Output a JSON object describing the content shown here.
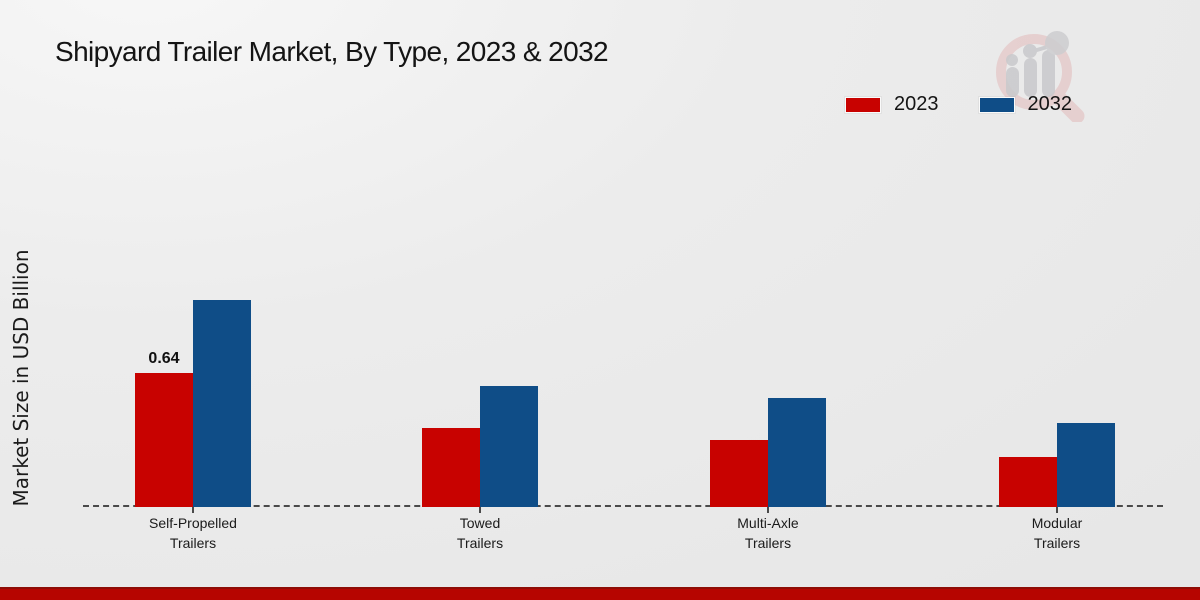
{
  "header": {
    "title": "Shipyard Trailer Market, By Type, 2023 & 2032"
  },
  "axes": {
    "ylabel": "Market Size in USD Billion"
  },
  "legend": {
    "items": [
      {
        "label": "2023",
        "color": "#c80200"
      },
      {
        "label": "2032",
        "color": "#0f4d87"
      }
    ]
  },
  "colors": {
    "series_2023": "#c80200",
    "series_2032": "#0f4d87",
    "footer_bar": "#b60500",
    "background": "#ececec",
    "baseline": "#4a4a4a"
  },
  "branding": {
    "logo": "market-research-magnifier-chart-logo"
  },
  "chart_data": {
    "type": "bar",
    "title": "Shipyard Trailer Market, By Type, 2023 & 2032",
    "categories": [
      "Self-Propelled Trailers",
      "Towed Trailers",
      "Multi-Axle Trailers",
      "Modular Trailers"
    ],
    "category_label_lines": [
      [
        "Self-Propelled",
        "Trailers"
      ],
      [
        "Towed",
        "Trailers"
      ],
      [
        "Multi-Axle",
        "Trailers"
      ],
      [
        "Modular",
        "Trailers"
      ]
    ],
    "series": [
      {
        "name": "2023",
        "color": "#c80200",
        "values": [
          0.64,
          0.38,
          0.32,
          0.24
        ]
      },
      {
        "name": "2032",
        "color": "#0f4d87",
        "values": [
          0.99,
          0.58,
          0.52,
          0.4
        ]
      }
    ],
    "xlabel": "",
    "ylabel": "Market Size in USD Billion",
    "ylim": [
      0,
      1.1
    ],
    "grid": false,
    "legend_position": "top-right",
    "baseline_style": "dashed",
    "data_labels": [
      {
        "series": "2023",
        "category_index": 0,
        "text": "0.64"
      }
    ]
  }
}
